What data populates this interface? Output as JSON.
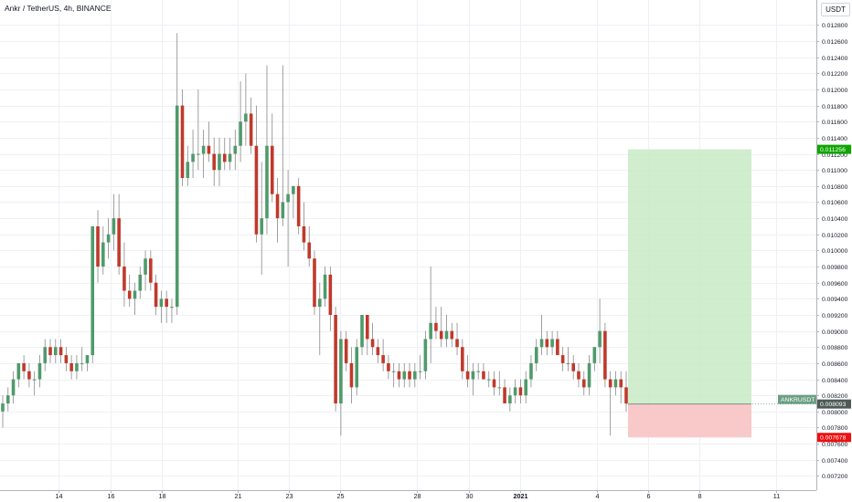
{
  "header": {
    "title": "Ankr / TetherUS, 4h, BINANCE",
    "unit": "USDT"
  },
  "chart_data": {
    "type": "candlestick",
    "symbol": "Ankr / TetherUS",
    "interval": "4h",
    "exchange": "BINANCE",
    "y_ticks": [
      "0.007200",
      "0.007400",
      "0.007600",
      "0.007800",
      "0.008000",
      "0.008200",
      "0.008400",
      "0.008600",
      "0.008800",
      "0.009000",
      "0.009200",
      "0.009400",
      "0.009600",
      "0.009800",
      "0.010000",
      "0.010200",
      "0.010400",
      "0.010600",
      "0.010800",
      "0.011000",
      "0.011200",
      "0.011400",
      "0.011600",
      "0.011800",
      "0.012000",
      "0.012200",
      "0.012400",
      "0.012600",
      "0.012800"
    ],
    "x_ticks": [
      "14",
      "16",
      "18",
      "21",
      "23",
      "25",
      "28",
      "30",
      "2021",
      "4",
      "6",
      "8",
      "11"
    ],
    "ylim": [
      0.00708,
      0.01302
    ],
    "grid": true,
    "candles": [
      [
        0.008,
        0.0082,
        0.0078,
        0.0081
      ],
      [
        0.0081,
        0.0083,
        0.008,
        0.0082
      ],
      [
        0.0082,
        0.0085,
        0.0081,
        0.0084
      ],
      [
        0.0084,
        0.0086,
        0.0083,
        0.0086
      ],
      [
        0.0086,
        0.0087,
        0.0084,
        0.0085
      ],
      [
        0.0085,
        0.0086,
        0.0083,
        0.0084
      ],
      [
        0.0084,
        0.0085,
        0.0082,
        0.0084
      ],
      [
        0.0084,
        0.0087,
        0.0083,
        0.0086
      ],
      [
        0.0086,
        0.0089,
        0.0085,
        0.0088
      ],
      [
        0.0088,
        0.0089,
        0.0086,
        0.0087
      ],
      [
        0.0087,
        0.0089,
        0.0086,
        0.0088
      ],
      [
        0.0088,
        0.0089,
        0.0086,
        0.0087
      ],
      [
        0.0087,
        0.0088,
        0.0085,
        0.0086
      ],
      [
        0.0086,
        0.0087,
        0.0084,
        0.0085
      ],
      [
        0.0085,
        0.0087,
        0.0084,
        0.0086
      ],
      [
        0.0086,
        0.0088,
        0.0085,
        0.0086
      ],
      [
        0.0086,
        0.0087,
        0.0085,
        0.0087
      ],
      [
        0.0087,
        0.0103,
        0.0086,
        0.0103
      ],
      [
        0.0103,
        0.0105,
        0.0096,
        0.0098
      ],
      [
        0.0098,
        0.0103,
        0.0097,
        0.0101
      ],
      [
        0.0101,
        0.0104,
        0.0099,
        0.0102
      ],
      [
        0.0102,
        0.0107,
        0.01,
        0.0104
      ],
      [
        0.0104,
        0.0107,
        0.0097,
        0.0098
      ],
      [
        0.0098,
        0.0101,
        0.0093,
        0.0095
      ],
      [
        0.0095,
        0.0097,
        0.0093,
        0.0094
      ],
      [
        0.0094,
        0.0096,
        0.0092,
        0.0095
      ],
      [
        0.0095,
        0.0098,
        0.0094,
        0.0097
      ],
      [
        0.0097,
        0.01,
        0.0095,
        0.0099
      ],
      [
        0.0099,
        0.01,
        0.0095,
        0.0096
      ],
      [
        0.0096,
        0.0097,
        0.0092,
        0.0093
      ],
      [
        0.0093,
        0.0095,
        0.0091,
        0.0094
      ],
      [
        0.0094,
        0.0095,
        0.0091,
        0.0093
      ],
      [
        0.0093,
        0.0094,
        0.0091,
        0.0093
      ],
      [
        0.0093,
        0.0127,
        0.0092,
        0.0118
      ],
      [
        0.0118,
        0.012,
        0.0108,
        0.0109
      ],
      [
        0.0109,
        0.0113,
        0.0108,
        0.0111
      ],
      [
        0.0111,
        0.0115,
        0.0109,
        0.0112
      ],
      [
        0.0112,
        0.012,
        0.011,
        0.0112
      ],
      [
        0.0112,
        0.0115,
        0.0109,
        0.0113
      ],
      [
        0.0113,
        0.0116,
        0.0111,
        0.0112
      ],
      [
        0.0112,
        0.0114,
        0.0108,
        0.011
      ],
      [
        0.011,
        0.0114,
        0.0108,
        0.0112
      ],
      [
        0.0112,
        0.0114,
        0.011,
        0.0111
      ],
      [
        0.0111,
        0.0114,
        0.011,
        0.0112
      ],
      [
        0.0112,
        0.0115,
        0.011,
        0.0113
      ],
      [
        0.0113,
        0.0121,
        0.0111,
        0.0116
      ],
      [
        0.0116,
        0.0122,
        0.0113,
        0.0117
      ],
      [
        0.0117,
        0.0119,
        0.0112,
        0.0113
      ],
      [
        0.0113,
        0.0118,
        0.0101,
        0.0102
      ],
      [
        0.0102,
        0.0111,
        0.0097,
        0.0104
      ],
      [
        0.0104,
        0.0123,
        0.0102,
        0.0113
      ],
      [
        0.0113,
        0.0117,
        0.0106,
        0.0107
      ],
      [
        0.0107,
        0.0109,
        0.0101,
        0.0104
      ],
      [
        0.0104,
        0.0123,
        0.0103,
        0.0106
      ],
      [
        0.0106,
        0.011,
        0.0098,
        0.0107
      ],
      [
        0.0107,
        0.0108,
        0.0104,
        0.0108
      ],
      [
        0.0108,
        0.0109,
        0.0102,
        0.0103
      ],
      [
        0.0103,
        0.0106,
        0.01,
        0.0101
      ],
      [
        0.0101,
        0.0103,
        0.0098,
        0.0099
      ],
      [
        0.0099,
        0.01,
        0.0092,
        0.0093
      ],
      [
        0.0093,
        0.0096,
        0.0087,
        0.0094
      ],
      [
        0.0094,
        0.0098,
        0.0093,
        0.0097
      ],
      [
        0.0097,
        0.0098,
        0.009,
        0.0092
      ],
      [
        0.0092,
        0.0093,
        0.008,
        0.0081
      ],
      [
        0.0081,
        0.009,
        0.0077,
        0.0089
      ],
      [
        0.0089,
        0.009,
        0.0085,
        0.0086
      ],
      [
        0.0086,
        0.0088,
        0.0081,
        0.0083
      ],
      [
        0.0083,
        0.0089,
        0.0082,
        0.0088
      ],
      [
        0.0088,
        0.0092,
        0.0087,
        0.0092
      ],
      [
        0.0092,
        0.0092,
        0.0087,
        0.0089
      ],
      [
        0.0089,
        0.0091,
        0.0087,
        0.0088
      ],
      [
        0.0088,
        0.0089,
        0.0086,
        0.0087
      ],
      [
        0.0087,
        0.0089,
        0.0085,
        0.0086
      ],
      [
        0.0086,
        0.0087,
        0.0084,
        0.0085
      ],
      [
        0.0085,
        0.0086,
        0.0083,
        0.0085
      ],
      [
        0.0085,
        0.0086,
        0.0083,
        0.0084
      ],
      [
        0.0084,
        0.0086,
        0.0083,
        0.0085
      ],
      [
        0.0085,
        0.0086,
        0.0083,
        0.0084
      ],
      [
        0.0084,
        0.0086,
        0.0083,
        0.0085
      ],
      [
        0.0085,
        0.0087,
        0.0084,
        0.0085
      ],
      [
        0.0085,
        0.009,
        0.0084,
        0.0089
      ],
      [
        0.0089,
        0.0098,
        0.0086,
        0.0091
      ],
      [
        0.0091,
        0.0093,
        0.0089,
        0.009
      ],
      [
        0.009,
        0.0093,
        0.0088,
        0.0089
      ],
      [
        0.0089,
        0.0092,
        0.0088,
        0.009
      ],
      [
        0.009,
        0.0091,
        0.0088,
        0.0089
      ],
      [
        0.0089,
        0.0091,
        0.0087,
        0.0088
      ],
      [
        0.0088,
        0.0089,
        0.0084,
        0.0085
      ],
      [
        0.0085,
        0.0087,
        0.0083,
        0.0084
      ],
      [
        0.0084,
        0.0086,
        0.0082,
        0.0085
      ],
      [
        0.0085,
        0.0086,
        0.0084,
        0.0085
      ],
      [
        0.0085,
        0.0086,
        0.0084,
        0.0084
      ],
      [
        0.0084,
        0.0085,
        0.0083,
        0.0084
      ],
      [
        0.0084,
        0.0085,
        0.0082,
        0.0083
      ],
      [
        0.0083,
        0.0085,
        0.0082,
        0.0083
      ],
      [
        0.0083,
        0.0084,
        0.0081,
        0.0081
      ],
      [
        0.0081,
        0.0083,
        0.008,
        0.0082
      ],
      [
        0.0082,
        0.0084,
        0.0081,
        0.0083
      ],
      [
        0.0083,
        0.0084,
        0.0081,
        0.0082
      ],
      [
        0.0082,
        0.0085,
        0.0081,
        0.0084
      ],
      [
        0.0084,
        0.0087,
        0.0083,
        0.0086
      ],
      [
        0.0086,
        0.0089,
        0.0085,
        0.0088
      ],
      [
        0.0088,
        0.0092,
        0.0087,
        0.0089
      ],
      [
        0.0089,
        0.009,
        0.0087,
        0.0088
      ],
      [
        0.0088,
        0.009,
        0.0087,
        0.0089
      ],
      [
        0.0089,
        0.009,
        0.0087,
        0.0087
      ],
      [
        0.0087,
        0.0088,
        0.0085,
        0.0086
      ],
      [
        0.0086,
        0.0088,
        0.0085,
        0.0086
      ],
      [
        0.0086,
        0.0087,
        0.0084,
        0.0085
      ],
      [
        0.0085,
        0.0086,
        0.0083,
        0.0084
      ],
      [
        0.0084,
        0.0085,
        0.0082,
        0.0083
      ],
      [
        0.0083,
        0.0087,
        0.0082,
        0.0086
      ],
      [
        0.0086,
        0.0088,
        0.0085,
        0.0088
      ],
      [
        0.0088,
        0.0094,
        0.0086,
        0.009
      ],
      [
        0.009,
        0.0091,
        0.0083,
        0.0084
      ],
      [
        0.0084,
        0.0085,
        0.0077,
        0.0083
      ],
      [
        0.0083,
        0.0085,
        0.0082,
        0.0084
      ],
      [
        0.0084,
        0.0085,
        0.0081,
        0.0083
      ],
      [
        0.0083,
        0.0085,
        0.008,
        0.0081
      ]
    ],
    "last_price": "0.008093",
    "ticker_label": "ANKRUSDT",
    "position_tool": {
      "type": "long",
      "entry": 0.008093,
      "take_profit": 0.011256,
      "take_profit_label": "0.011256",
      "stop_loss": 0.007678,
      "stop_loss_label": "0.007678"
    },
    "colors": {
      "up": "#4f9a6b",
      "down": "#c0392b",
      "profit_zone": "#c8eac6",
      "loss_zone": "#f8c3c3",
      "tp_tag": "#0ea500",
      "sl_tag": "#ef0f0f",
      "last_tag": "#6b9e84"
    }
  }
}
